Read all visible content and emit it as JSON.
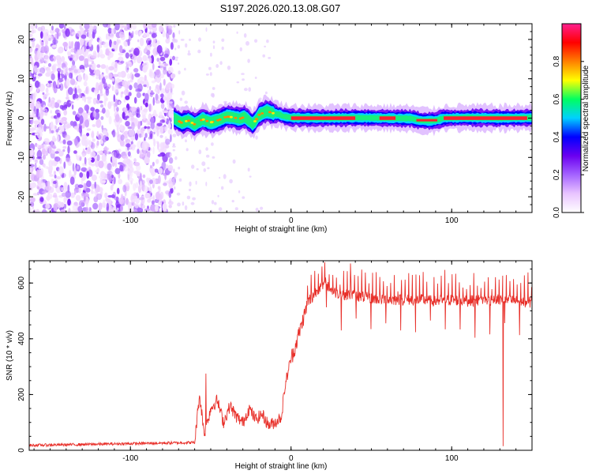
{
  "title": "S197.2026.020.13.08.G07",
  "chart_data": [
    {
      "type": "heatmap",
      "xlabel": "Height of straight line (km)",
      "ylabel": "Frequency (Hz)",
      "xlim": [
        -163,
        150
      ],
      "ylim": [
        -24,
        24
      ],
      "x_ticks": [
        -100,
        0,
        100
      ],
      "y_ticks": [
        -20,
        -10,
        0,
        10,
        20
      ],
      "colorbar": {
        "label": "Normalized spectral amplitude",
        "range": [
          0,
          1
        ],
        "ticks": [
          0.0,
          0.2,
          0.4,
          0.6,
          0.8
        ],
        "colors": [
          "#ffffff",
          "#e9c4ff",
          "#a463ff",
          "#6b00f0",
          "#0000ff",
          "#00d0ff",
          "#00ff60",
          "#ffff00",
          "#ff8000",
          "#ff0000",
          "#ff1f8f"
        ]
      },
      "noise_region": {
        "x_range": [
          -163,
          -73
        ],
        "y_range": [
          -24,
          24
        ]
      },
      "ridge": {
        "x": [
          -73,
          -68,
          -64,
          -60,
          -55,
          -50,
          -45,
          -40,
          -36,
          -32,
          -29,
          -26,
          -24,
          -22,
          -20,
          -17,
          -15,
          -13,
          -10,
          -7,
          -5,
          0,
          20,
          40,
          60,
          75,
          80,
          85,
          90,
          95,
          110,
          130,
          150
        ],
        "y": [
          0.0,
          -1.2,
          -0.6,
          -1.6,
          -0.3,
          -1.1,
          -0.5,
          0.4,
          0.2,
          -0.2,
          0.3,
          -0.7,
          -1.5,
          -0.6,
          0.8,
          1.4,
          1.8,
          1.5,
          1.1,
          0.9,
          0.5,
          0.1,
          0.0,
          0.1,
          0.0,
          -0.1,
          -0.6,
          -0.7,
          -0.6,
          0.0,
          0.1,
          0.0,
          0.1
        ]
      }
    },
    {
      "type": "line",
      "xlabel": "Height of straight line (km)",
      "ylabel": "SNR (10 * v/v)",
      "xlim": [
        -163,
        150
      ],
      "ylim": [
        0,
        680
      ],
      "x_ticks": [
        -100,
        0,
        100
      ],
      "y_ticks": [
        0,
        200,
        400,
        600
      ],
      "series": [
        {
          "name": "SNR",
          "color": "#e8302a",
          "x": [
            -163,
            -140,
            -120,
            -100,
            -80,
            -60,
            -57,
            -54,
            -50,
            -46,
            -42,
            -38,
            -34,
            -30,
            -26,
            -22,
            -18,
            -14,
            -10,
            -6,
            -4,
            -2,
            0,
            2,
            5,
            8,
            10,
            14,
            18,
            22,
            26,
            30,
            40,
            50,
            60,
            70,
            80,
            90,
            100,
            110,
            120,
            130,
            140,
            150
          ],
          "y": [
            18,
            20,
            22,
            24,
            26,
            28,
            200,
            60,
            150,
            180,
            100,
            160,
            120,
            100,
            150,
            110,
            130,
            90,
            100,
            120,
            220,
            280,
            330,
            360,
            420,
            480,
            520,
            560,
            585,
            590,
            570,
            560,
            555,
            545,
            540,
            540,
            540,
            535,
            540,
            535,
            540,
            540,
            535,
            530
          ]
        }
      ],
      "spikes": [
        {
          "x": -53,
          "y": 275
        },
        {
          "x": 21,
          "y": 675
        },
        {
          "x": 37,
          "y": 670
        },
        {
          "x": 132,
          "y": 15
        }
      ]
    }
  ]
}
